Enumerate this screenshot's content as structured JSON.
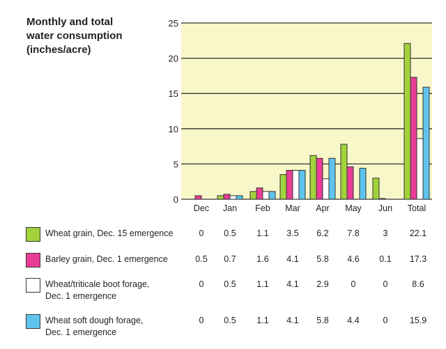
{
  "chart_data": {
    "type": "bar",
    "title": "Monthly and total water consumption (inches/acre)",
    "title_lines": [
      "Monthly and total",
      "water consumption",
      "(inches/acre)"
    ],
    "categories": [
      "Dec",
      "Jan",
      "Feb",
      "Mar",
      "Apr",
      "May",
      "Jun",
      "Total"
    ],
    "ylim": [
      0,
      25
    ],
    "yticks": [
      "0",
      "5",
      "10",
      "15",
      "20",
      "25"
    ],
    "grid": true,
    "plot_background": "#f8f7c9",
    "legend_placement": "bottom (table)",
    "series": [
      {
        "name": "Wheat grain, Dec. 15 emergence",
        "name_lines": [
          "Wheat grain, Dec. 15 emergence"
        ],
        "color": "#a2d33c",
        "values": [
          0,
          0.5,
          1.1,
          3.5,
          6.2,
          7.8,
          3,
          22.1
        ],
        "labels": [
          "0",
          "0.5",
          "1.1",
          "3.5",
          "6.2",
          "7.8",
          "3",
          "22.1"
        ]
      },
      {
        "name": "Barley grain, Dec. 1 emergence",
        "name_lines": [
          "Barley grain, Dec. 1 emergence"
        ],
        "color": "#e83d97",
        "values": [
          0.5,
          0.7,
          1.6,
          4.1,
          5.8,
          4.6,
          0.1,
          17.3
        ],
        "labels": [
          "0.5",
          "0.7",
          "1.6",
          "4.1",
          "5.8",
          "4.6",
          "0.1",
          "17.3"
        ]
      },
      {
        "name": "Wheat/triticale boot forage, Dec. 1 emergence",
        "name_lines": [
          "Wheat/triticale boot forage,",
          "Dec. 1 emergence"
        ],
        "color": "#ffffff",
        "values": [
          0,
          0.5,
          1.1,
          4.1,
          2.9,
          0,
          0,
          8.6
        ],
        "labels": [
          "0",
          "0.5",
          "1.1",
          "4.1",
          "2.9",
          "0",
          "0",
          "8.6"
        ]
      },
      {
        "name": "Wheat soft dough forage, Dec. 1 emergence",
        "name_lines": [
          "Wheat soft dough forage,",
          "Dec. 1 emergence"
        ],
        "color": "#5ec4ee",
        "values": [
          0,
          0.5,
          1.1,
          4.1,
          5.8,
          4.4,
          0,
          15.9
        ],
        "labels": [
          "0",
          "0.5",
          "1.1",
          "4.1",
          "5.8",
          "4.4",
          "0",
          "15.9"
        ]
      }
    ]
  }
}
